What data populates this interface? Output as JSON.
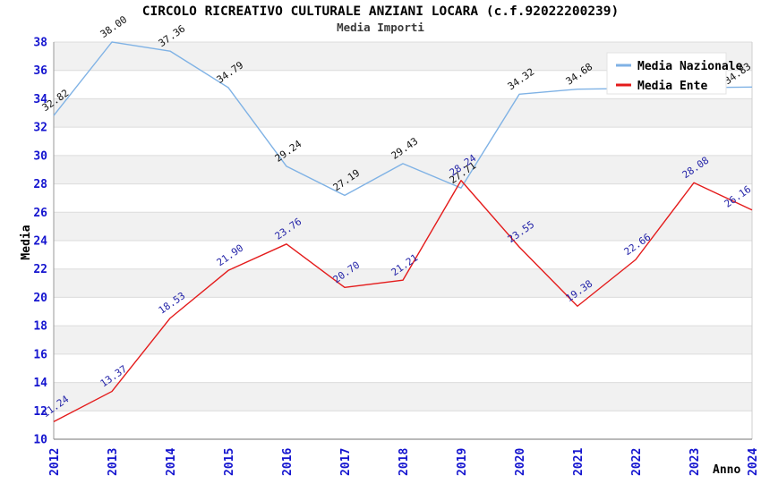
{
  "title": "CIRCOLO RICREATIVO CULTURALE ANZIANI LOCARA (c.f.92022200239)",
  "subtitle": "Media Importi",
  "legend": {
    "items": [
      {
        "label": "Media Nazionale",
        "color": "#7fb2e5"
      },
      {
        "label": "Media Ente",
        "color": "#e41b1b"
      }
    ]
  },
  "axes": {
    "x_title": "Anno",
    "y_title": "Media"
  },
  "chart_data": {
    "type": "line",
    "title": "CIRCOLO RICREATIVO CULTURALE ANZIANI LOCARA (c.f.92022200239)",
    "subtitle": "Media Importi",
    "x": [
      "2012",
      "2013",
      "2014",
      "2015",
      "2016",
      "2017",
      "2018",
      "2019",
      "2020",
      "2021",
      "2022",
      "2023",
      "2024"
    ],
    "series": [
      {
        "name": "Media Nazionale",
        "color": "#7fb2e5",
        "label_color": "#111111",
        "values": [
          32.82,
          38.0,
          37.36,
          34.79,
          29.24,
          27.19,
          29.43,
          27.71,
          34.32,
          34.68,
          34.73,
          34.78,
          34.83
        ],
        "labels": [
          "32.82",
          "38.00",
          "37.36",
          "34.79",
          "29.24",
          "27.19",
          "29.43",
          "27.71",
          "34.32",
          "34.68",
          null,
          null,
          "34.83"
        ]
      },
      {
        "name": "Media Ente",
        "color": "#e41b1b",
        "label_color": "#2424a8",
        "values": [
          11.24,
          13.37,
          18.53,
          21.9,
          23.76,
          20.7,
          21.21,
          28.24,
          23.55,
          19.38,
          22.66,
          28.08,
          26.16
        ],
        "labels": [
          "11.24",
          "13.37",
          "18.53",
          "21.90",
          "23.76",
          "20.70",
          "21.21",
          "28.24",
          "23.55",
          "19.38",
          "22.66",
          "28.08",
          "26.16"
        ]
      }
    ],
    "xlabel": "Anno",
    "ylabel": "Media",
    "ylim": [
      10,
      38
    ],
    "ytick_step": 2,
    "legend_position": "top-right",
    "grid": "horizontal"
  },
  "colors": {
    "band_gray": "#f1f1f1",
    "gridline": "#dcdcdc",
    "axis_line": "#9a9a9a",
    "right_border": "#cfcfcf",
    "tick_text": "#1414cf",
    "legend_border": "#e3e3e3",
    "background": "#ffffff"
  }
}
